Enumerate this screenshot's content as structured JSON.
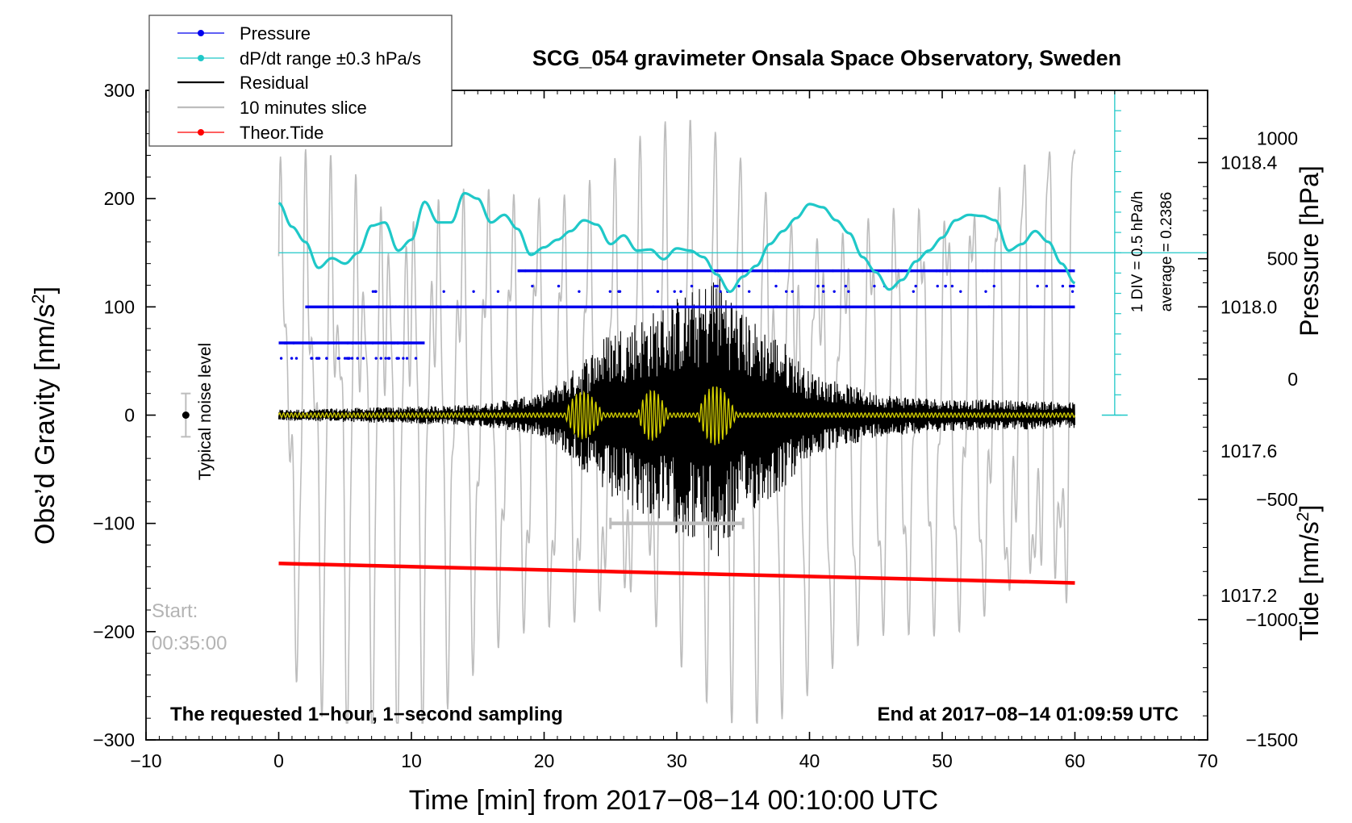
{
  "chart_data": {
    "type": "line",
    "title": "SCG_054 gravimeter Onsala Space Observatory, Sweden",
    "xlabel": "Time [min] from 2017−08−14 00:10:00 UTC",
    "ylabel_left": "Obs’d Gravity [nm/s²]",
    "ylabel_right_pressure": "Pressure [hPa]",
    "ylabel_right_tide": "Tide [nm/s²]",
    "xlim": [
      -10,
      70
    ],
    "ylim": [
      -300,
      300
    ],
    "x_ticks": [
      "−10",
      "0",
      "10",
      "20",
      "30",
      "40",
      "50",
      "60",
      "70"
    ],
    "y_ticks": [
      "300",
      "200",
      "100",
      "0",
      "−100",
      "−200",
      "−300"
    ],
    "pressure_axis": {
      "range": [
        1016.8,
        1018.6
      ],
      "ticks": [
        "1018.4",
        "1018.0",
        "1017.6",
        "1017.2"
      ]
    },
    "tide_axis": {
      "range": [
        -1500,
        1200
      ],
      "ticks": [
        "1000",
        "500",
        "0",
        "−500",
        "−1000",
        "−1500"
      ]
    },
    "legend": {
      "placement": "top-left",
      "entries": [
        {
          "label": "Pressure",
          "color": "#0000ee"
        },
        {
          "label": "dP/dt range ±0.3 hPa/s",
          "color": "#1fc8c8"
        },
        {
          "label": "Residual",
          "color": "#000000"
        },
        {
          "label": "10 minutes slice",
          "color": "#bdbdbd"
        },
        {
          "label": "Theor.Tide",
          "color": "#ff0000"
        }
      ]
    },
    "annotations": {
      "noise": "Typical noise level",
      "start_label": "Start:",
      "start_time": "00:35:00",
      "footer_left": "The requested 1−hour, 1−second sampling",
      "footer_right": "End at 2017−08−14 01:09:59 UTC",
      "div": "1 DIV = 0.5 hPa/h",
      "average": "average = 0.2386"
    },
    "series": [
      {
        "name": "Pressure",
        "levels_hpa": [
          1017.9,
          1018.0,
          1018.1
        ],
        "segments": [
          {
            "x0": 0,
            "x1": 11,
            "level": 1017.9
          },
          {
            "x0": 2,
            "x1": 60,
            "level": 1018.0
          },
          {
            "x0": 18,
            "x1": 60,
            "level": 1018.1
          }
        ]
      },
      {
        "name": "dP/dt",
        "x": [
          0,
          1,
          2,
          3,
          4,
          5,
          6,
          7,
          8,
          9,
          10,
          11,
          12,
          13,
          14,
          15,
          16,
          17,
          18,
          19,
          20,
          21,
          22,
          23,
          24,
          25,
          26,
          27,
          28,
          29,
          30,
          31,
          32,
          33,
          34,
          35,
          36,
          37,
          38,
          39,
          40,
          41,
          42,
          43,
          44,
          45,
          46,
          47,
          48,
          49,
          50,
          51,
          52,
          53,
          54,
          55,
          56,
          57,
          58,
          59,
          60
        ],
        "y": [
          196,
          174,
          160,
          136,
          145,
          140,
          150,
          175,
          178,
          152,
          162,
          197,
          178,
          178,
          205,
          200,
          178,
          185,
          172,
          148,
          155,
          162,
          170,
          180,
          176,
          158,
          166,
          152,
          153,
          144,
          154,
          152,
          146,
          130,
          114,
          128,
          138,
          158,
          170,
          182,
          195,
          192,
          180,
          168,
          146,
          132,
          116,
          125,
          142,
          152,
          164,
          180,
          185,
          184,
          180,
          152,
          158,
          170,
          160,
          140,
          122
        ],
        "baseline": 150
      },
      {
        "name": "Residual",
        "envelope": {
          "x": [
            0,
            10,
            15,
            20,
            22,
            25,
            28,
            30,
            32,
            33,
            35,
            38,
            40,
            45,
            50,
            55,
            60
          ],
          "y": [
            5,
            8,
            10,
            20,
            40,
            80,
            95,
            110,
            120,
            140,
            95,
            70,
            40,
            20,
            15,
            14,
            12
          ]
        }
      },
      {
        "name": "10 minutes slice",
        "y_range_nm_s2": [
          -1500,
          1200
        ],
        "x_range": [
          0,
          60
        ]
      },
      {
        "name": "Theor.Tide",
        "x": [
          0,
          60
        ],
        "y": [
          -137,
          -155
        ]
      }
    ],
    "noise_bar": {
      "x": -7,
      "y": 0,
      "half_range": 20
    },
    "slice_window": {
      "x0": 25,
      "x1": 35,
      "y": -100
    },
    "pressure_reference_line": 150
  }
}
